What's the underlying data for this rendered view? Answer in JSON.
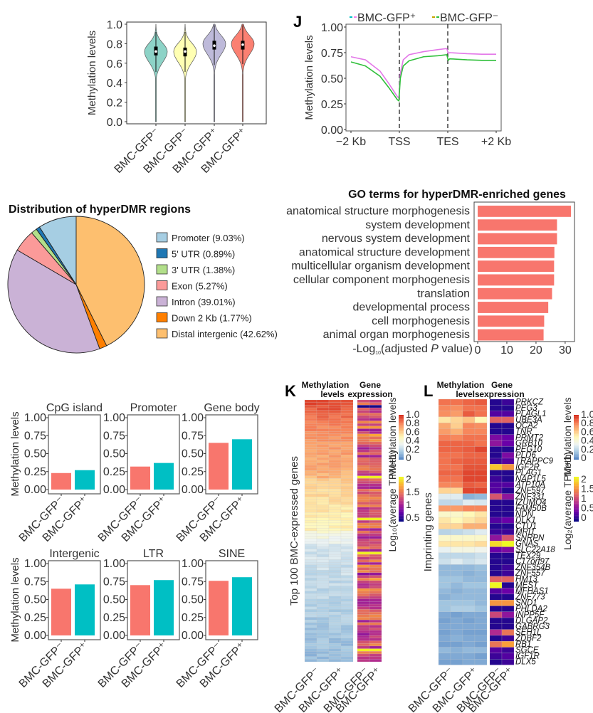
{
  "chart_data": [
    {
      "id": "violin",
      "type": "violin",
      "ylabel": "Methylation levels",
      "ylim": [
        0,
        1
      ],
      "yticks": [
        "0.0",
        "0.2",
        "0.4",
        "0.6",
        "0.8",
        "1.0"
      ],
      "categories": [
        "BMC-GFP⁻",
        "BMC-GFP⁻",
        "BMC-GFP⁺",
        "BMC-GFP⁺"
      ],
      "colors": [
        "#8dd3c7",
        "#ffffb3",
        "#bebada",
        "#fb8072"
      ],
      "medians": [
        0.72,
        0.72,
        0.78,
        0.79
      ],
      "q1": [
        0.68,
        0.67,
        0.74,
        0.74
      ],
      "q3": [
        0.77,
        0.76,
        0.83,
        0.83
      ],
      "whisker_low": [
        0.51,
        0.51,
        0.58,
        0.59
      ],
      "whisker_high": [
        0.92,
        0.92,
        0.99,
        0.99
      ],
      "mode": [
        0.72,
        0.72,
        0.8,
        0.8
      ]
    },
    {
      "id": "profile",
      "type": "line",
      "panel_letter": "J",
      "ylabel": "Methylation levels",
      "ylim": [
        0,
        1
      ],
      "yticks": [
        "0.00",
        "0.25",
        "0.50",
        "0.75",
        "1.00"
      ],
      "xticks": [
        "−2 Kb",
        "TSS",
        "TES",
        "+2 Kb"
      ],
      "legend": [
        {
          "label": "BMC-GFP⁺",
          "dash_colors": [
            "#00bfc4",
            "#ee82ee"
          ]
        },
        {
          "label": "BMC-GFP⁻",
          "dash_colors": [
            "#c5a300",
            "#2fbf3a"
          ]
        }
      ],
      "series": [
        {
          "name": "BMC-GFP⁺",
          "color": "#e377e8",
          "x": [
            0,
            0.1,
            0.2,
            0.26,
            0.32,
            0.33,
            0.34,
            0.36,
            0.4,
            0.5,
            0.6,
            0.66,
            0.67,
            0.68,
            0.8,
            0.9,
            1.0
          ],
          "y": [
            0.71,
            0.68,
            0.57,
            0.45,
            0.32,
            0.31,
            0.55,
            0.68,
            0.73,
            0.76,
            0.78,
            0.79,
            0.745,
            0.75,
            0.74,
            0.735,
            0.735
          ]
        },
        {
          "name": "BMC-GFP⁻",
          "color": "#2fbf3a",
          "x": [
            0,
            0.1,
            0.2,
            0.26,
            0.32,
            0.33,
            0.34,
            0.36,
            0.4,
            0.5,
            0.6,
            0.66,
            0.67,
            0.68,
            0.8,
            0.9,
            1.0
          ],
          "y": [
            0.66,
            0.62,
            0.52,
            0.41,
            0.29,
            0.28,
            0.5,
            0.62,
            0.67,
            0.71,
            0.72,
            0.73,
            0.675,
            0.69,
            0.68,
            0.675,
            0.675
          ]
        }
      ]
    },
    {
      "id": "pie",
      "type": "pie",
      "title": "Distribution of hyperDMR regions",
      "slices": [
        {
          "label": "Promoter (9.03%)",
          "value": 9.03,
          "color": "#a6cee3"
        },
        {
          "label": "5' UTR (0.89%)",
          "value": 0.89,
          "color": "#1f78b4"
        },
        {
          "label": "3' UTR (1.38%)",
          "value": 1.38,
          "color": "#b2df8a"
        },
        {
          "label": "Exon (5.27%)",
          "value": 5.27,
          "color": "#fb9a99"
        },
        {
          "label": "Intron (39.01%)",
          "value": 39.01,
          "color": "#cab2d6"
        },
        {
          "label": "Down 2 Kb (1.77%)",
          "value": 1.77,
          "color": "#ff7f00"
        },
        {
          "label": "Distal intergenic (42.62%)",
          "value": 42.62,
          "color": "#fdbf6f"
        }
      ]
    },
    {
      "id": "go",
      "type": "bar",
      "orientation": "horizontal",
      "title": "GO terms for hyperDMR-enriched genes",
      "xlabel_prefix": "-Log",
      "xlabel_sub": "10",
      "xlabel_mid": "(adjusted ",
      "xlabel_italic": "P",
      "xlabel_suffix": " value)",
      "xticks": [
        "0",
        "10",
        "20",
        "30"
      ],
      "xlim": [
        0,
        33
      ],
      "color": "#f8766d",
      "categories": [
        "anatomical structure morphogenesis",
        "system development",
        "nervous system development",
        "anatomical structure development",
        "multicellular organism development",
        "cellular component morphogenesis",
        "translation",
        "developmental process",
        "cell morphogenesis",
        "animal organ morphogenesis"
      ],
      "values": [
        32,
        27.2,
        27.2,
        26.3,
        26.2,
        26.2,
        25.5,
        24.2,
        22.8,
        22.6
      ]
    },
    {
      "id": "region-bars",
      "type": "bar",
      "ylabel": "Methylation levels",
      "ylim": [
        0,
        1
      ],
      "yticks": [
        "0.00",
        "0.25",
        "0.50",
        "0.75",
        "1.00"
      ],
      "categories": [
        "BMC-GFP⁻",
        "BMC-GFP⁺"
      ],
      "colors": [
        "#f8766d",
        "#00bfc4"
      ],
      "panels": [
        {
          "title": "CpG island",
          "values": [
            0.23,
            0.27
          ]
        },
        {
          "title": "Promoter",
          "values": [
            0.32,
            0.37
          ]
        },
        {
          "title": "Gene body",
          "values": [
            0.65,
            0.7
          ]
        },
        {
          "title": "Intergenic",
          "values": [
            0.65,
            0.71
          ]
        },
        {
          "title": "LTR",
          "values": [
            0.7,
            0.77
          ]
        },
        {
          "title": "SINE",
          "values": [
            0.76,
            0.81
          ]
        }
      ]
    },
    {
      "id": "heatmap-k",
      "type": "heatmap",
      "panel_letter": "K",
      "ylabel": "Top 100 BMC-expressed genes",
      "col_header_meth": [
        "Methylation",
        "levels"
      ],
      "col_header_expr": [
        "Gene",
        "expression"
      ],
      "xlabels_meth": [
        "BMC-GFP⁻",
        "BMC-GFP⁺"
      ],
      "xlabels_expr": [
        "BMC-GFP⁻",
        "BMC-GFP⁺"
      ],
      "rows": 100,
      "legend_meth": {
        "title": "Methylation levels",
        "ticks": [
          "1.0",
          "0.8",
          "0.6",
          "0.4",
          "0.2",
          "0"
        ]
      },
      "legend_expr": {
        "title": "Log₁₀(average TPM+1)",
        "ticks": [
          "2",
          "1.5",
          "1",
          "0.5"
        ]
      }
    },
    {
      "id": "heatmap-l",
      "type": "heatmap",
      "panel_letter": "L",
      "ylabel": "Imprinting genes",
      "col_header_meth": [
        "Methylation",
        "levels"
      ],
      "col_header_expr": [
        "Gene",
        "expression"
      ],
      "xlabels_meth": [
        "BMC-GFP⁻",
        "BMC-GFP⁺"
      ],
      "xlabels_expr": [
        "BMC-GFP⁻",
        "BMC-GFP⁺"
      ],
      "genes": [
        "PRKCZ",
        "PEG3",
        "PLAGL1",
        "UBE3A",
        "OCA2",
        "TNR",
        "PRMT2",
        "GRB10",
        "PEG10",
        "PLD6",
        "TRAPPC9",
        "IGF2R",
        "PLAG1",
        "NAP1L5",
        "ATP10A",
        "ZNF597",
        "ZNF331",
        "IZUMO4",
        "FAM50B",
        "NDN",
        "DLK1",
        "CTU1",
        "MRI1",
        "SNRPN",
        "GNAS",
        "SLC22A18",
        "TEX29",
        "C17orf97",
        "ZNF354B",
        "ZNF557",
        "HM13",
        "MEST",
        "MFHAS1",
        "ZNF773",
        "SND1",
        "PHLDA2",
        "INPP5F",
        "DLGAP2",
        "GABRG3",
        "SEH1L",
        "ZDBF2",
        "RB1",
        "SGCE",
        "IGF1R",
        "DLX5"
      ],
      "meth": [
        [
          0.85,
          0.85,
          0.88,
          0.9
        ],
        [
          0.8,
          0.78,
          0.85,
          0.85
        ],
        [
          0.78,
          0.75,
          0.9,
          0.85
        ],
        [
          0.55,
          0.6,
          0.65,
          0.5
        ],
        [
          0.72,
          0.62,
          0.8,
          0.78
        ],
        [
          0.75,
          0.7,
          0.8,
          0.8
        ],
        [
          0.82,
          0.8,
          0.85,
          0.85
        ],
        [
          0.88,
          0.88,
          0.88,
          0.85
        ],
        [
          0.88,
          0.88,
          0.9,
          0.95
        ],
        [
          0.85,
          0.85,
          0.88,
          0.88
        ],
        [
          0.85,
          0.88,
          0.9,
          0.9
        ],
        [
          0.85,
          0.85,
          0.92,
          0.92
        ],
        [
          0.88,
          0.88,
          0.95,
          0.95
        ],
        [
          0.85,
          0.85,
          0.95,
          0.95
        ],
        [
          0.8,
          0.8,
          0.9,
          0.88
        ],
        [
          0.6,
          0.6,
          0.95,
          0.95
        ],
        [
          0.3,
          0.3,
          0.1,
          0.12
        ],
        [
          0.22,
          0.22,
          0.3,
          0.28
        ],
        [
          0.75,
          0.75,
          0.8,
          0.8
        ],
        [
          0.45,
          0.45,
          0.5,
          0.55
        ],
        [
          0.55,
          0.5,
          0.55,
          0.6
        ],
        [
          0.6,
          0.6,
          0.7,
          0.7
        ],
        [
          0.2,
          0.22,
          0.25,
          0.3
        ],
        [
          0.45,
          0.45,
          0.45,
          0.45
        ],
        [
          0.55,
          0.55,
          0.55,
          0.58
        ],
        [
          0.32,
          0.38,
          0.38,
          0.35
        ],
        [
          0.22,
          0.22,
          0.22,
          0.25
        ],
        [
          0.25,
          0.3,
          0.25,
          0.28
        ],
        [
          0.12,
          0.12,
          0.12,
          0.14
        ],
        [
          0.12,
          0.12,
          0.1,
          0.12
        ],
        [
          0.15,
          0.15,
          0.12,
          0.12
        ],
        [
          0.15,
          0.12,
          0.15,
          0.15
        ],
        [
          0.12,
          0.1,
          0.12,
          0.12
        ],
        [
          0.1,
          0.12,
          0.12,
          0.12
        ],
        [
          0.15,
          0.15,
          0.15,
          0.12
        ],
        [
          0.15,
          0.18,
          0.18,
          0.15
        ],
        [
          0.08,
          0.06,
          0.08,
          0.08
        ],
        [
          0.06,
          0.08,
          0.06,
          0.08
        ],
        [
          0.08,
          0.08,
          0.08,
          0.08
        ],
        [
          0.06,
          0.08,
          0.06,
          0.06
        ],
        [
          0.08,
          0.1,
          0.08,
          0.08
        ],
        [
          0.06,
          0.06,
          0.08,
          0.06
        ],
        [
          0.12,
          0.1,
          0.12,
          0.12
        ],
        [
          0.08,
          0.08,
          0.08,
          0.06
        ],
        [
          0.06,
          0.06,
          0.08,
          0.08
        ]
      ],
      "expr": [
        [
          0.05,
          0.1
        ],
        [
          0.05,
          0.05
        ],
        [
          0.15,
          0.15
        ],
        [
          0.6,
          0.6
        ],
        [
          0.05,
          0.05
        ],
        [
          0.05,
          0.05
        ],
        [
          0.25,
          0.2
        ],
        [
          0.3,
          0.2
        ],
        [
          0.05,
          0.05
        ],
        [
          0.05,
          0.25
        ],
        [
          0.1,
          0.15
        ],
        [
          0.88,
          0.75
        ],
        [
          0.05,
          0.05
        ],
        [
          0.1,
          0.05
        ],
        [
          0.15,
          0.15
        ],
        [
          0.15,
          0.05
        ],
        [
          0.55,
          0.3
        ],
        [
          0.05,
          0.05
        ],
        [
          0.05,
          0.05
        ],
        [
          0.05,
          0.05
        ],
        [
          0.15,
          0.2
        ],
        [
          0.05,
          0.05
        ],
        [
          0.1,
          0.1
        ],
        [
          0.3,
          0.55
        ],
        [
          0.92,
          1.0
        ],
        [
          0.2,
          0.25
        ],
        [
          0.05,
          0.05
        ],
        [
          0.05,
          0.05
        ],
        [
          0.05,
          0.1
        ],
        [
          0.05,
          0.1
        ],
        [
          0.6,
          0.6
        ],
        [
          1.0,
          0.05
        ],
        [
          0.15,
          0.2
        ],
        [
          0.05,
          0.05
        ],
        [
          0.75,
          0.75
        ],
        [
          0.05,
          0.05
        ],
        [
          0.5,
          0.3
        ],
        [
          0.05,
          0.05
        ],
        [
          0.05,
          0.05
        ],
        [
          0.4,
          0.65
        ],
        [
          0.05,
          0.1
        ],
        [
          0.65,
          0.78
        ],
        [
          0.15,
          0.1
        ],
        [
          0.1,
          0.15
        ],
        [
          0.05,
          0.1
        ]
      ],
      "legend_meth": {
        "title": "Methylation levels",
        "ticks": [
          "1.0",
          "0.8",
          "0.6",
          "0.4",
          "0.2",
          "0"
        ]
      },
      "legend_expr": {
        "title": "Log₂(average TPM+1)",
        "ticks": [
          "2",
          "1.5",
          "1",
          "0.5",
          "0"
        ]
      }
    }
  ]
}
